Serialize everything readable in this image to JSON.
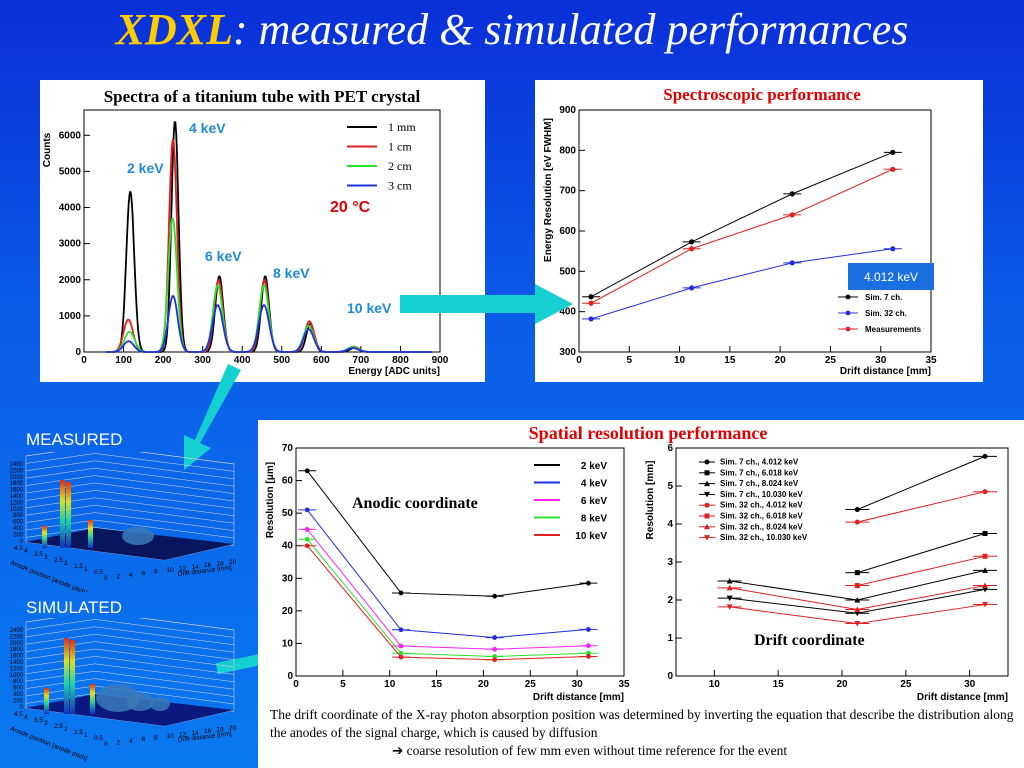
{
  "title": {
    "accent": "XDXL",
    "rest": ": measured & simulated performances"
  },
  "spectra": {
    "title": "Spectra of a titanium tube with PET crystal",
    "ylabel": "Counts",
    "xlabel": "Energy [ADC units]",
    "temp": "20 °C",
    "peaks": [
      "2 keV",
      "4 keV",
      "6 keV",
      "8 keV",
      "10 keV"
    ],
    "legend": [
      "1 mm",
      "1 cm",
      "2 cm",
      "3 cm"
    ],
    "colors": [
      "#000000",
      "#e02020",
      "#30e030",
      "#2030e0"
    ]
  },
  "spectro": {
    "title": "Spectroscopic performance",
    "ylabel": "Energy Resolution [eV FWHM]",
    "xlabel": "Drift distance [mm]",
    "badge": "4.012 keV",
    "legend": [
      "Sim. 7 ch.",
      "Sim. 32 ch.",
      "Measurements"
    ]
  },
  "spatial": {
    "title": "Spatial resolution performance"
  },
  "anodic": {
    "label": "Anodic coordinate",
    "ylabel": "Resolution [μm]",
    "xlabel": "Drift distance [mm]",
    "legend": [
      "2 keV",
      "4 keV",
      "6 keV",
      "8 keV",
      "10 keV"
    ]
  },
  "drift": {
    "label": "Drift coordinate",
    "ylabel": "Resolution [mm]",
    "xlabel": "Drift distance [mm]",
    "legend": [
      "Sim. 7 ch., 4.012 keV",
      "Sim. 7 ch., 6.018 keV",
      "Sim. 7 ch., 8.024 keV",
      "Sim. 7 ch., 10.030 keV",
      "Sim. 32 ch., 4.012 keV",
      "Sim. 32 ch., 6.018 keV",
      "Sim. 32 ch., 8.024 keV",
      "Sim. 32 ch., 10.030 keV"
    ]
  },
  "measured_label": "MEASURED",
  "simulated_label": "SIMULATED",
  "surf": {
    "zticks": [
      "2400",
      "2200",
      "2000",
      "1800",
      "1600",
      "1400",
      "1200",
      "1000",
      "800",
      "600",
      "400",
      "200",
      "0"
    ],
    "xlabel": "Drift distance [mm]",
    "ylabel": "Anode position [anode pitch]"
  },
  "caption": {
    "line1": "The drift coordinate of the X-ray photon absorption position was determined by inverting the equation that describe the distribution along the anodes of the signal charge, which is caused by diffusion",
    "line2": "➔ coarse resolution of few mm even without time reference for the event"
  },
  "chart_data": [
    {
      "type": "line",
      "title": "Spectra of a titanium tube with PET crystal",
      "xlabel": "Energy [ADC units]",
      "ylabel": "Counts",
      "xlim": [
        0,
        900
      ],
      "ylim": [
        0,
        6700
      ],
      "xticks": [
        0,
        100,
        200,
        300,
        400,
        500,
        600,
        700,
        800,
        900
      ],
      "yticks": [
        0,
        1000,
        2000,
        3000,
        4000,
        5000,
        6000
      ],
      "series": [
        {
          "name": "1 mm",
          "peaks": [
            [
              117,
              4450,
              10
            ],
            [
              230,
              6400,
              9
            ],
            [
              342,
              2100,
              10
            ],
            [
              458,
              2100,
              10
            ],
            [
              572,
              780,
              10
            ],
            [
              685,
              120,
              12
            ]
          ]
        },
        {
          "name": "1 cm",
          "peaks": [
            [
              112,
              900,
              12
            ],
            [
              225,
              5900,
              10
            ],
            [
              340,
              2000,
              11
            ],
            [
              456,
              2000,
              11
            ],
            [
              570,
              850,
              12
            ],
            [
              682,
              150,
              13
            ]
          ]
        },
        {
          "name": "2 cm",
          "peaks": [
            [
              115,
              560,
              13
            ],
            [
              224,
              3700,
              11
            ],
            [
              338,
              1850,
              12
            ],
            [
              455,
              1850,
              12
            ],
            [
              568,
              730,
              13
            ],
            [
              680,
              140,
              14
            ]
          ]
        },
        {
          "name": "3 cm",
          "peaks": [
            [
              113,
              300,
              13
            ],
            [
              225,
              1550,
              12
            ],
            [
              338,
              1300,
              13
            ],
            [
              455,
              1300,
              13
            ],
            [
              568,
              630,
              13
            ],
            [
              680,
              110,
              14
            ]
          ]
        }
      ]
    },
    {
      "type": "line",
      "title": "Spectroscopic performance",
      "xlabel": "Drift distance [mm]",
      "ylabel": "Energy Resolution [eV FWHM]",
      "xlim": [
        0,
        35
      ],
      "ylim": [
        300,
        900
      ],
      "xticks": [
        0,
        5,
        10,
        15,
        20,
        25,
        30,
        35
      ],
      "yticks": [
        300,
        400,
        500,
        600,
        700,
        800,
        900
      ],
      "x": [
        1.2,
        11.2,
        21.2,
        31.2
      ],
      "series": [
        {
          "name": "Sim. 7 ch.",
          "values": [
            437,
            573,
            692,
            795
          ]
        },
        {
          "name": "Sim. 32 ch.",
          "values": [
            382,
            459,
            521,
            556
          ]
        },
        {
          "name": "Measurements",
          "values": [
            421,
            556,
            640,
            753
          ]
        }
      ]
    },
    {
      "type": "line",
      "title": "Anodic coordinate",
      "xlabel": "Drift distance [mm]",
      "ylabel": "Resolution [μm]",
      "xlim": [
        0,
        35
      ],
      "ylim": [
        0,
        70
      ],
      "xticks": [
        0,
        5,
        10,
        15,
        20,
        25,
        30,
        35
      ],
      "yticks": [
        0,
        10,
        20,
        30,
        40,
        50,
        60,
        70
      ],
      "x": [
        1.2,
        11.2,
        21.2,
        31.2
      ],
      "series": [
        {
          "name": "2 keV",
          "values": [
            63,
            25.5,
            24.5,
            28.5
          ]
        },
        {
          "name": "4 keV",
          "values": [
            51,
            14.2,
            11.8,
            14.3
          ]
        },
        {
          "name": "6 keV",
          "values": [
            45,
            9.2,
            8.2,
            9.3
          ]
        },
        {
          "name": "8 keV",
          "values": [
            42,
            7,
            6,
            7
          ]
        },
        {
          "name": "10 keV",
          "values": [
            40,
            5.8,
            5,
            6
          ]
        }
      ]
    },
    {
      "type": "line",
      "title": "Drift coordinate",
      "xlabel": "Drift distance [mm]",
      "ylabel": "Resolution [mm]",
      "xlim": [
        7,
        33
      ],
      "ylim": [
        0,
        6
      ],
      "xticks": [
        10,
        15,
        20,
        25,
        30
      ],
      "yticks": [
        0,
        1,
        2,
        3,
        4,
        5,
        6
      ],
      "series": [
        {
          "name": "Sim. 7 ch., 4.012 keV",
          "x": [
            21.2,
            31.2
          ],
          "values": [
            4.38,
            5.78
          ]
        },
        {
          "name": "Sim. 7 ch., 6.018 keV",
          "x": [
            21.2,
            31.2
          ],
          "values": [
            2.72,
            3.75
          ]
        },
        {
          "name": "Sim. 7 ch., 8.024 keV",
          "x": [
            11.2,
            21.2,
            31.2
          ],
          "values": [
            2.5,
            2.0,
            2.78
          ]
        },
        {
          "name": "Sim. 7 ch., 10.030 keV",
          "x": [
            11.2,
            21.2,
            31.2
          ],
          "values": [
            2.05,
            1.65,
            2.28
          ]
        },
        {
          "name": "Sim. 32 ch., 4.012 keV",
          "x": [
            21.2,
            31.2
          ],
          "values": [
            4.05,
            4.85
          ]
        },
        {
          "name": "Sim. 32 ch., 6.018 keV",
          "x": [
            21.2,
            31.2
          ],
          "values": [
            2.38,
            3.15
          ]
        },
        {
          "name": "Sim. 32 ch., 8.024 keV",
          "x": [
            11.2,
            21.2,
            31.2
          ],
          "values": [
            2.32,
            1.75,
            2.38
          ]
        },
        {
          "name": "Sim. 32 ch., 10.030 keV",
          "x": [
            11.2,
            21.2,
            31.2
          ],
          "values": [
            1.82,
            1.38,
            1.88
          ]
        }
      ]
    }
  ]
}
